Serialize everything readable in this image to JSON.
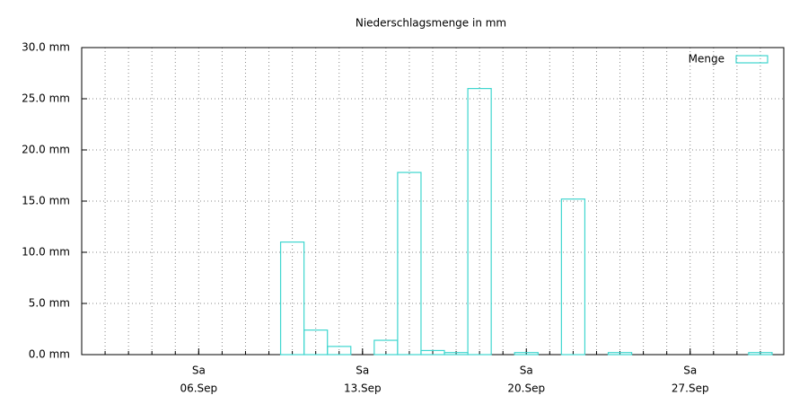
{
  "chart_data": {
    "type": "bar",
    "title": "Niederschlagsmenge in mm",
    "x": [
      10,
      11,
      12,
      14,
      15,
      16,
      17,
      18,
      20,
      22,
      24,
      30
    ],
    "series": [
      {
        "name": "Menge",
        "color": "#3fd6cf",
        "values": [
          11.0,
          2.4,
          0.8,
          1.4,
          17.8,
          0.4,
          0.2,
          26.0,
          0.2,
          15.2,
          0.2,
          0.2
        ]
      }
    ],
    "xlim": [
      1,
      31
    ],
    "xticks": [
      {
        "value": 6,
        "label": [
          "Sa",
          "06.Sep"
        ]
      },
      {
        "value": 13,
        "label": [
          "Sa",
          "13.Sep"
        ]
      },
      {
        "value": 20,
        "label": [
          "Sa",
          "20.Sep"
        ]
      },
      {
        "value": 27,
        "label": [
          "Sa",
          "27.Sep"
        ]
      }
    ],
    "x_minor_step": 1,
    "ylim": [
      0,
      30
    ],
    "yticks": [
      {
        "value": 0,
        "label": "0.0 mm"
      },
      {
        "value": 5,
        "label": "5.0 mm"
      },
      {
        "value": 10,
        "label": "10.0 mm"
      },
      {
        "value": 15,
        "label": "15.0 mm"
      },
      {
        "value": 20,
        "label": "20.0 mm"
      },
      {
        "value": 25,
        "label": "25.0 mm"
      },
      {
        "value": 30,
        "label": "30.0 mm"
      }
    ],
    "grid": true,
    "legend": "top-right"
  }
}
